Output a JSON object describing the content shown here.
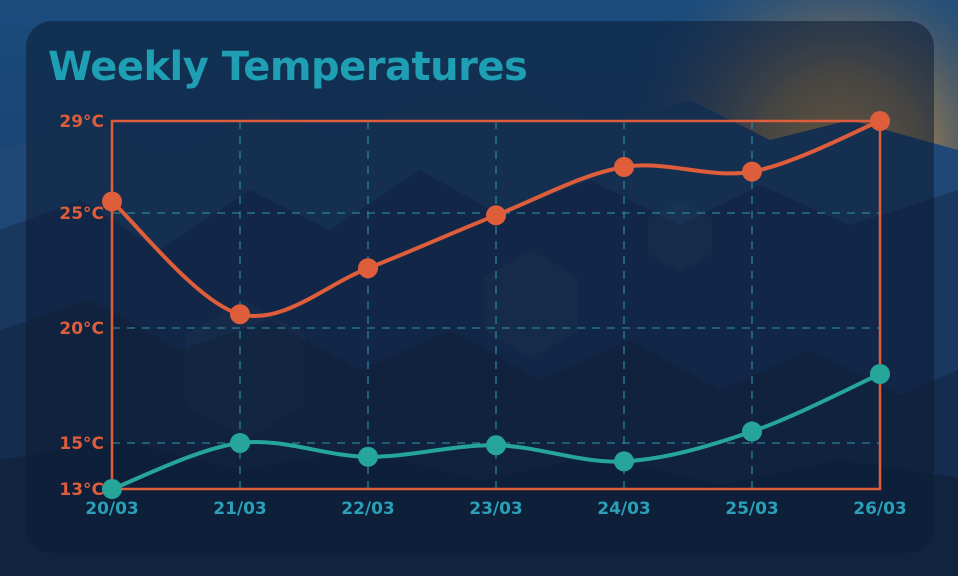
{
  "chart_data": {
    "type": "line",
    "title": "Weekly Temperatures",
    "xlabel": "",
    "ylabel": "",
    "categories": [
      "20/03",
      "21/03",
      "22/03",
      "23/03",
      "24/03",
      "25/03",
      "26/03"
    ],
    "y_ticks": [
      13,
      15,
      20,
      25,
      29
    ],
    "y_tick_labels": [
      "13°C",
      "15°C",
      "20°C",
      "25°C",
      "29°C"
    ],
    "ylim": [
      13,
      29
    ],
    "grid": true,
    "legend": "none",
    "series": [
      {
        "values": [
          25.5,
          20.6,
          22.6,
          24.9,
          27.0,
          26.8,
          29.0
        ]
      },
      {
        "values": [
          13.0,
          15.0,
          14.4,
          14.9,
          14.2,
          15.5,
          18.0
        ]
      }
    ]
  },
  "colors": {
    "high": "#de5d3b",
    "low": "#26a69a",
    "title": "#1e9fb3",
    "x_tick": "#2a9fb5",
    "y_tick": "#de5d3b",
    "grid": "#2e7f97",
    "frame": "#de5d3b"
  }
}
